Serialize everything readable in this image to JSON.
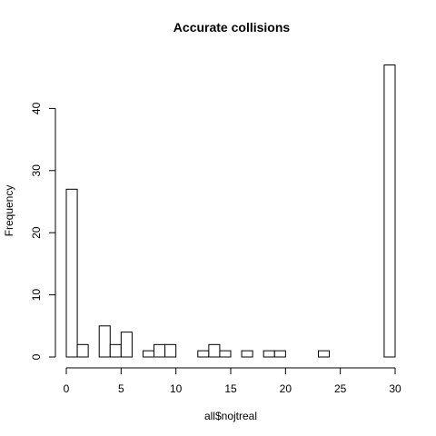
{
  "chart_data": {
    "type": "bar",
    "title": "Accurate collisions",
    "xlabel": "all$nojtreal",
    "ylabel": "Frequency",
    "xlim": [
      0,
      30
    ],
    "ylim": [
      0,
      47
    ],
    "bin_width": 1,
    "bins": [
      {
        "start": 0,
        "end": 1,
        "count": 27
      },
      {
        "start": 1,
        "end": 2,
        "count": 2
      },
      {
        "start": 2,
        "end": 3,
        "count": 0
      },
      {
        "start": 3,
        "end": 4,
        "count": 5
      },
      {
        "start": 4,
        "end": 5,
        "count": 2
      },
      {
        "start": 5,
        "end": 6,
        "count": 4
      },
      {
        "start": 6,
        "end": 7,
        "count": 0
      },
      {
        "start": 7,
        "end": 8,
        "count": 1
      },
      {
        "start": 8,
        "end": 9,
        "count": 2
      },
      {
        "start": 9,
        "end": 10,
        "count": 2
      },
      {
        "start": 10,
        "end": 11,
        "count": 0
      },
      {
        "start": 11,
        "end": 12,
        "count": 0
      },
      {
        "start": 12,
        "end": 13,
        "count": 1
      },
      {
        "start": 13,
        "end": 14,
        "count": 2
      },
      {
        "start": 14,
        "end": 15,
        "count": 1
      },
      {
        "start": 15,
        "end": 16,
        "count": 0
      },
      {
        "start": 16,
        "end": 17,
        "count": 1
      },
      {
        "start": 17,
        "end": 18,
        "count": 0
      },
      {
        "start": 18,
        "end": 19,
        "count": 1
      },
      {
        "start": 19,
        "end": 20,
        "count": 1
      },
      {
        "start": 20,
        "end": 21,
        "count": 0
      },
      {
        "start": 21,
        "end": 22,
        "count": 0
      },
      {
        "start": 22,
        "end": 23,
        "count": 0
      },
      {
        "start": 23,
        "end": 24,
        "count": 1
      },
      {
        "start": 24,
        "end": 25,
        "count": 0
      },
      {
        "start": 25,
        "end": 26,
        "count": 0
      },
      {
        "start": 26,
        "end": 27,
        "count": 0
      },
      {
        "start": 27,
        "end": 28,
        "count": 0
      },
      {
        "start": 28,
        "end": 29,
        "count": 0
      },
      {
        "start": 29,
        "end": 30,
        "count": 47
      }
    ],
    "x_ticks": [
      0,
      5,
      10,
      15,
      20,
      25,
      30
    ],
    "y_ticks": [
      0,
      10,
      20,
      30,
      40
    ],
    "grid": false,
    "bar_fill": "#ffffff",
    "bar_stroke": "#000000"
  }
}
